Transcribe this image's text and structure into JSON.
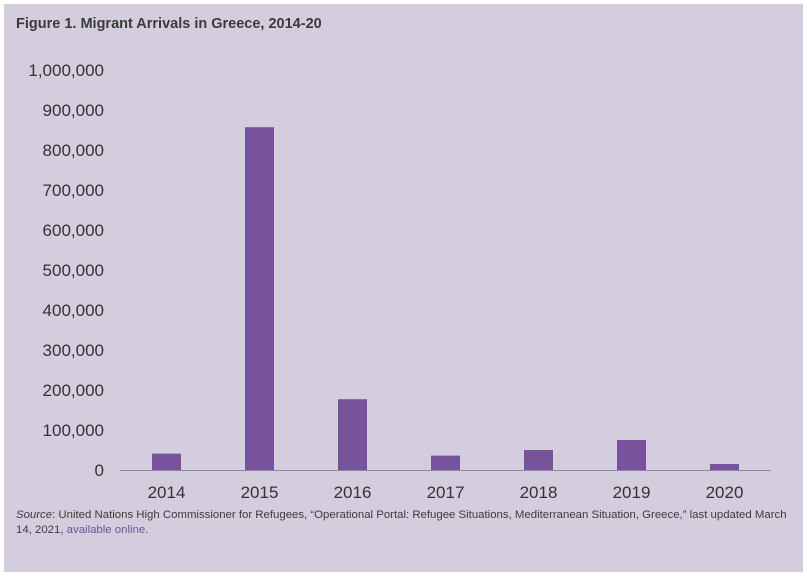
{
  "title": "Figure 1. Migrant Arrivals in Greece, 2014-20",
  "source": {
    "label": "Source",
    "text": ": United Nations High Commissioner for Refugees, “Operational Portal: Refugee Situations, Mediterranean Situation, Greece,” last updated March 14, 2021, ",
    "link_text": "available online",
    "end": "."
  },
  "colors": {
    "background": "#d3cddd",
    "bar": "#76539a",
    "axis": "#8d86a0",
    "text": "#333333",
    "link": "#6b559c"
  },
  "chart_data": {
    "type": "bar",
    "categories": [
      "2014",
      "2015",
      "2016",
      "2017",
      "2018",
      "2019",
      "2020"
    ],
    "values": [
      41000,
      857000,
      177000,
      36000,
      50000,
      75000,
      15000
    ],
    "ylim": [
      0,
      1000000
    ],
    "yticks": [
      0,
      100000,
      200000,
      300000,
      400000,
      500000,
      600000,
      700000,
      800000,
      900000,
      1000000
    ],
    "ytick_labels": [
      "0",
      "100,000",
      "200,000",
      "300,000",
      "400,000",
      "500,000",
      "600,000",
      "700,000",
      "800,000",
      "900,000",
      "1,000,000"
    ],
    "grid": false,
    "legend": "none"
  }
}
